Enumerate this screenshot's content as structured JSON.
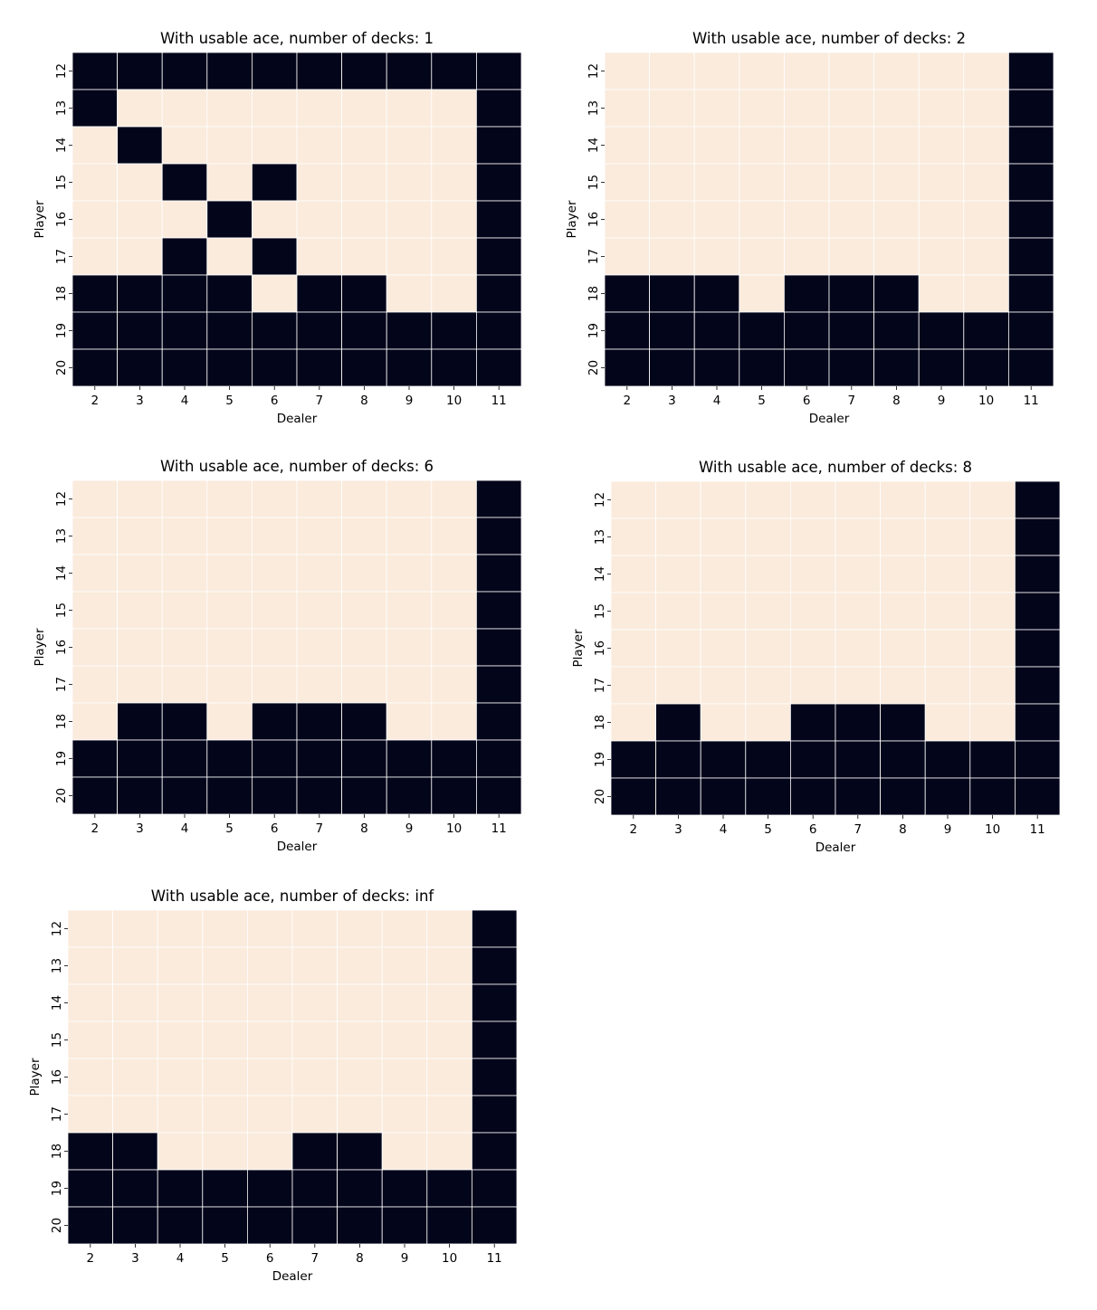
{
  "chart_data": [
    {
      "type": "heatmap",
      "title": "With usable ace, number of decks: 1",
      "xlabel": "Dealer",
      "ylabel": "Player",
      "x_categories": [
        "2",
        "3",
        "4",
        "5",
        "6",
        "7",
        "8",
        "9",
        "10",
        "11"
      ],
      "y_categories": [
        "12",
        "13",
        "14",
        "15",
        "16",
        "17",
        "18",
        "19",
        "20"
      ],
      "values": [
        [
          1,
          1,
          1,
          1,
          1,
          1,
          1,
          1,
          1,
          1
        ],
        [
          1,
          0,
          0,
          0,
          0,
          0,
          0,
          0,
          0,
          1
        ],
        [
          0,
          1,
          0,
          0,
          0,
          0,
          0,
          0,
          0,
          1
        ],
        [
          0,
          0,
          1,
          0,
          1,
          0,
          0,
          0,
          0,
          1
        ],
        [
          0,
          0,
          0,
          1,
          0,
          0,
          0,
          0,
          0,
          1
        ],
        [
          0,
          0,
          1,
          0,
          1,
          0,
          0,
          0,
          0,
          1
        ],
        [
          1,
          1,
          1,
          1,
          0,
          1,
          1,
          0,
          0,
          1
        ],
        [
          1,
          1,
          1,
          1,
          1,
          1,
          1,
          1,
          1,
          1
        ],
        [
          1,
          1,
          1,
          1,
          1,
          1,
          1,
          1,
          1,
          1
        ]
      ]
    },
    {
      "type": "heatmap",
      "title": "With usable ace, number of decks: 2",
      "xlabel": "Dealer",
      "ylabel": "Player",
      "x_categories": [
        "2",
        "3",
        "4",
        "5",
        "6",
        "7",
        "8",
        "9",
        "10",
        "11"
      ],
      "y_categories": [
        "12",
        "13",
        "14",
        "15",
        "16",
        "17",
        "18",
        "19",
        "20"
      ],
      "values": [
        [
          0,
          0,
          0,
          0,
          0,
          0,
          0,
          0,
          0,
          1
        ],
        [
          0,
          0,
          0,
          0,
          0,
          0,
          0,
          0,
          0,
          1
        ],
        [
          0,
          0,
          0,
          0,
          0,
          0,
          0,
          0,
          0,
          1
        ],
        [
          0,
          0,
          0,
          0,
          0,
          0,
          0,
          0,
          0,
          1
        ],
        [
          0,
          0,
          0,
          0,
          0,
          0,
          0,
          0,
          0,
          1
        ],
        [
          0,
          0,
          0,
          0,
          0,
          0,
          0,
          0,
          0,
          1
        ],
        [
          1,
          1,
          1,
          0,
          1,
          1,
          1,
          0,
          0,
          1
        ],
        [
          1,
          1,
          1,
          1,
          1,
          1,
          1,
          1,
          1,
          1
        ],
        [
          1,
          1,
          1,
          1,
          1,
          1,
          1,
          1,
          1,
          1
        ]
      ]
    },
    {
      "type": "heatmap",
      "title": "With usable ace, number of decks: 6",
      "xlabel": "Dealer",
      "ylabel": "Player",
      "x_categories": [
        "2",
        "3",
        "4",
        "5",
        "6",
        "7",
        "8",
        "9",
        "10",
        "11"
      ],
      "y_categories": [
        "12",
        "13",
        "14",
        "15",
        "16",
        "17",
        "18",
        "19",
        "20"
      ],
      "values": [
        [
          0,
          0,
          0,
          0,
          0,
          0,
          0,
          0,
          0,
          1
        ],
        [
          0,
          0,
          0,
          0,
          0,
          0,
          0,
          0,
          0,
          1
        ],
        [
          0,
          0,
          0,
          0,
          0,
          0,
          0,
          0,
          0,
          1
        ],
        [
          0,
          0,
          0,
          0,
          0,
          0,
          0,
          0,
          0,
          1
        ],
        [
          0,
          0,
          0,
          0,
          0,
          0,
          0,
          0,
          0,
          1
        ],
        [
          0,
          0,
          0,
          0,
          0,
          0,
          0,
          0,
          0,
          1
        ],
        [
          0,
          1,
          1,
          0,
          1,
          1,
          1,
          0,
          0,
          1
        ],
        [
          1,
          1,
          1,
          1,
          1,
          1,
          1,
          1,
          1,
          1
        ],
        [
          1,
          1,
          1,
          1,
          1,
          1,
          1,
          1,
          1,
          1
        ]
      ]
    },
    {
      "type": "heatmap",
      "title": "With usable ace, number of decks: 8",
      "xlabel": "Dealer",
      "ylabel": "Player",
      "x_categories": [
        "2",
        "3",
        "4",
        "5",
        "6",
        "7",
        "8",
        "9",
        "10",
        "11"
      ],
      "y_categories": [
        "12",
        "13",
        "14",
        "15",
        "16",
        "17",
        "18",
        "19",
        "20"
      ],
      "values": [
        [
          0,
          0,
          0,
          0,
          0,
          0,
          0,
          0,
          0,
          1
        ],
        [
          0,
          0,
          0,
          0,
          0,
          0,
          0,
          0,
          0,
          1
        ],
        [
          0,
          0,
          0,
          0,
          0,
          0,
          0,
          0,
          0,
          1
        ],
        [
          0,
          0,
          0,
          0,
          0,
          0,
          0,
          0,
          0,
          1
        ],
        [
          0,
          0,
          0,
          0,
          0,
          0,
          0,
          0,
          0,
          1
        ],
        [
          0,
          0,
          0,
          0,
          0,
          0,
          0,
          0,
          0,
          1
        ],
        [
          0,
          1,
          0,
          0,
          1,
          1,
          1,
          0,
          0,
          1
        ],
        [
          1,
          1,
          1,
          1,
          1,
          1,
          1,
          1,
          1,
          1
        ],
        [
          1,
          1,
          1,
          1,
          1,
          1,
          1,
          1,
          1,
          1
        ]
      ]
    },
    {
      "type": "heatmap",
      "title": "With usable ace, number of decks: inf",
      "xlabel": "Dealer",
      "ylabel": "Player",
      "x_categories": [
        "2",
        "3",
        "4",
        "5",
        "6",
        "7",
        "8",
        "9",
        "10",
        "11"
      ],
      "y_categories": [
        "12",
        "13",
        "14",
        "15",
        "16",
        "17",
        "18",
        "19",
        "20"
      ],
      "values": [
        [
          0,
          0,
          0,
          0,
          0,
          0,
          0,
          0,
          0,
          1
        ],
        [
          0,
          0,
          0,
          0,
          0,
          0,
          0,
          0,
          0,
          1
        ],
        [
          0,
          0,
          0,
          0,
          0,
          0,
          0,
          0,
          0,
          1
        ],
        [
          0,
          0,
          0,
          0,
          0,
          0,
          0,
          0,
          0,
          1
        ],
        [
          0,
          0,
          0,
          0,
          0,
          0,
          0,
          0,
          0,
          1
        ],
        [
          0,
          0,
          0,
          0,
          0,
          0,
          0,
          0,
          0,
          1
        ],
        [
          1,
          1,
          0,
          0,
          0,
          1,
          1,
          0,
          0,
          1
        ],
        [
          1,
          1,
          1,
          1,
          1,
          1,
          1,
          1,
          1,
          1
        ],
        [
          1,
          1,
          1,
          1,
          1,
          1,
          1,
          1,
          1,
          1
        ]
      ]
    }
  ],
  "colors": {
    "value_0": "#FAEBDD",
    "value_1": "#03051A"
  }
}
